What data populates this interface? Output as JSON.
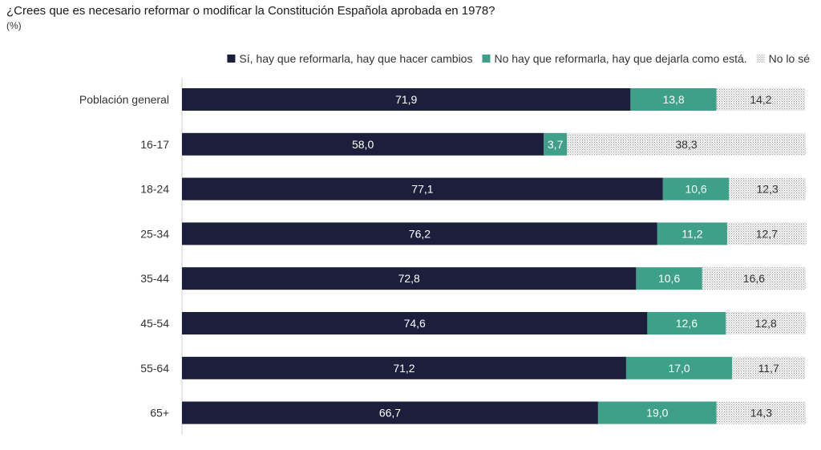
{
  "chart_data": {
    "type": "bar",
    "orientation": "horizontal",
    "stacked": true,
    "title": "¿Crees que es necesario reformar o modificar la Constitución Española aprobada en 1978?",
    "subtitle": "(%)",
    "categories": [
      "Población general",
      "16-17",
      "18-24",
      "25-34",
      "35-44",
      "45-54",
      "55-64",
      "65+"
    ],
    "series": [
      {
        "name": "Sí, hay que reformarla, hay que hacer cambios",
        "color": "#1b1f3b",
        "pattern": "solid",
        "values": [
          71.9,
          58.0,
          77.1,
          76.2,
          72.8,
          74.6,
          71.2,
          66.7
        ],
        "labels": [
          "71,9",
          "58,0",
          "77,1",
          "76,2",
          "72,8",
          "74,6",
          "71,2",
          "66,7"
        ]
      },
      {
        "name": "No hay que reformarla, hay que dejarla como está.",
        "color": "#3fa08a",
        "pattern": "solid",
        "values": [
          13.8,
          3.7,
          10.6,
          11.2,
          10.6,
          12.6,
          17.0,
          19.0
        ],
        "labels": [
          "13,8",
          "3,7",
          "10,6",
          "11,2",
          "10,6",
          "12,6",
          "17,0",
          "19,0"
        ]
      },
      {
        "name": "No lo sé",
        "color": "#bdbdbd",
        "pattern": "dotted",
        "values": [
          14.2,
          38.3,
          12.3,
          12.7,
          16.6,
          12.8,
          11.7,
          14.3
        ],
        "labels": [
          "14,2",
          "38,3",
          "12,3",
          "12,7",
          "16,6",
          "12,8",
          "11,7",
          "14,3"
        ]
      }
    ],
    "xlim": [
      0,
      100
    ],
    "legend_position": "top-right",
    "grid": false
  }
}
